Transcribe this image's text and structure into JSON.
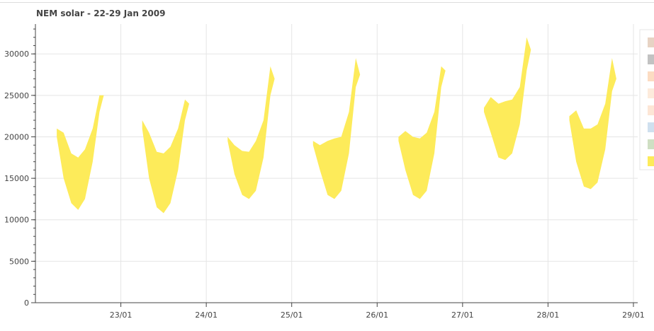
{
  "chart_data": {
    "type": "band",
    "title": "NEM solar - 22-29 Jan 2009",
    "x": [
      22.25,
      22.33,
      22.42,
      22.5,
      22.58,
      22.67,
      22.75,
      22.8,
      23.0,
      23.25,
      23.33,
      23.42,
      23.5,
      23.58,
      23.67,
      23.75,
      23.8,
      24.0,
      24.25,
      24.33,
      24.42,
      24.5,
      24.58,
      24.67,
      24.75,
      24.8,
      25.0,
      25.25,
      25.33,
      25.42,
      25.5,
      25.58,
      25.67,
      25.75,
      25.8,
      26.0,
      26.25,
      26.33,
      26.42,
      26.5,
      26.58,
      26.67,
      26.75,
      26.8,
      27.0,
      27.25,
      27.33,
      27.42,
      27.5,
      27.58,
      27.67,
      27.75,
      27.8,
      28.0,
      28.25,
      28.33,
      28.42,
      28.5,
      28.58,
      28.67,
      28.75,
      28.8
    ],
    "upper": [
      21000,
      20500,
      18000,
      17500,
      18500,
      21000,
      25000,
      25000,
      null,
      22000,
      20500,
      18200,
      18000,
      18800,
      21000,
      24500,
      24000,
      null,
      20000,
      19000,
      18300,
      18200,
      19500,
      22000,
      28500,
      27000,
      null,
      19500,
      19000,
      19500,
      19800,
      20000,
      23000,
      29500,
      27500,
      null,
      20000,
      20700,
      20000,
      19800,
      20500,
      23000,
      28500,
      28000,
      null,
      23500,
      24800,
      24000,
      24300,
      24500,
      26000,
      32000,
      30500,
      null,
      22500,
      23200,
      21000,
      21000,
      21500,
      24000,
      29500,
      27000
    ],
    "lower": [
      20000,
      15000,
      12000,
      11200,
      12500,
      17000,
      23000,
      25000,
      null,
      21000,
      15000,
      11500,
      10800,
      12000,
      16000,
      22000,
      24000,
      null,
      19500,
      15500,
      13000,
      12500,
      13500,
      17500,
      25000,
      27000,
      null,
      19000,
      16000,
      13000,
      12500,
      13500,
      18000,
      26000,
      27500,
      null,
      19500,
      16000,
      13000,
      12500,
      13500,
      18000,
      26000,
      28000,
      null,
      23000,
      20500,
      17500,
      17200,
      18000,
      21500,
      28000,
      30500,
      null,
      22000,
      17000,
      14000,
      13700,
      14500,
      18500,
      25500,
      27000
    ],
    "color": "#fdeb5a",
    "xlim": [
      22.0,
      29.05
    ],
    "xticks": [
      {
        "value": 23,
        "label": "23/01"
      },
      {
        "value": 24,
        "label": "24/01"
      },
      {
        "value": 25,
        "label": "25/01"
      },
      {
        "value": 26,
        "label": "26/01"
      },
      {
        "value": 27,
        "label": "27/01"
      },
      {
        "value": 28,
        "label": "28/01"
      },
      {
        "value": 29,
        "label": "29/01"
      }
    ],
    "ylim": [
      0,
      33600
    ],
    "yticks": [
      0,
      5000,
      10000,
      15000,
      20000,
      25000,
      30000
    ],
    "grid": true,
    "legend_colors": [
      "#e7d3c4",
      "#c2c2c2",
      "#fcdcc2",
      "#fdebdc",
      "#fde6d6",
      "#cfe0ef",
      "#cfdfc3",
      "#fdeb5a"
    ]
  }
}
